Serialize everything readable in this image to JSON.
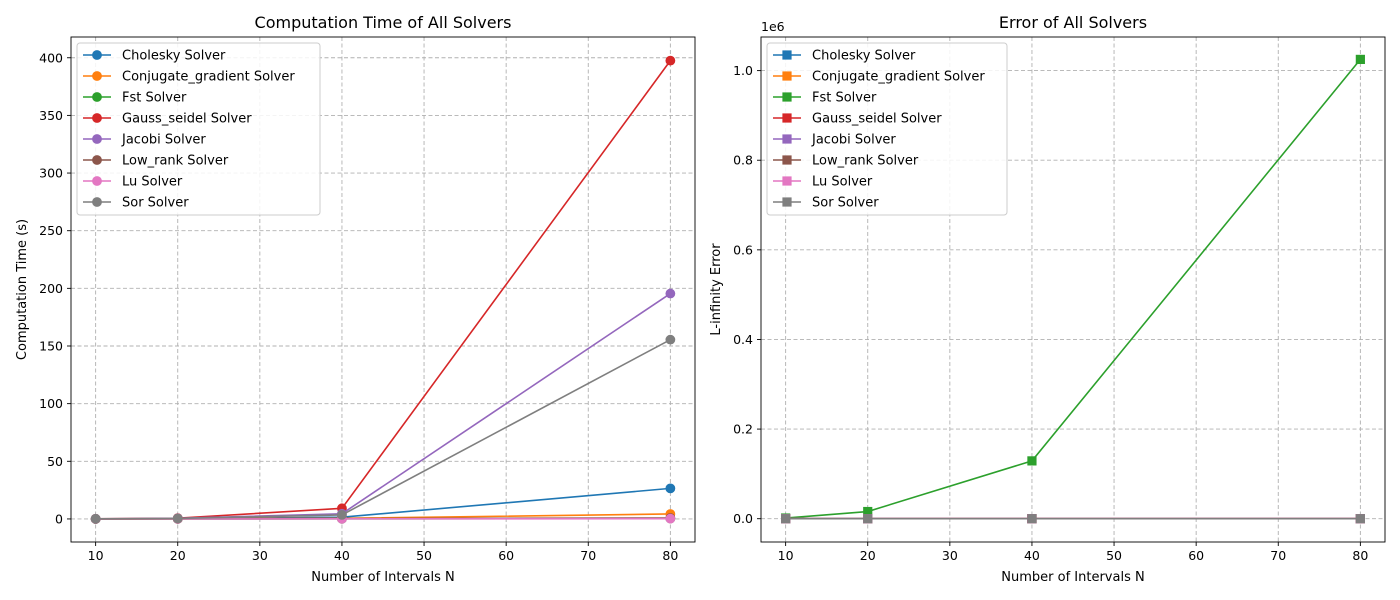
{
  "chart_data": [
    {
      "type": "line",
      "title": "Computation Time of All Solvers",
      "xlabel": "Number of Intervals N",
      "ylabel": "Computation Time (s)",
      "xlim": [
        7,
        83
      ],
      "ylim": [
        -20,
        418
      ],
      "xticks": [
        10,
        20,
        30,
        40,
        50,
        60,
        70,
        80
      ],
      "yticks": [
        0,
        50,
        100,
        150,
        200,
        250,
        300,
        350,
        400
      ],
      "offset_label": "",
      "grid": true,
      "legend_position": "top-left",
      "marker": "circle",
      "x": [
        10,
        20,
        40,
        80
      ],
      "series": [
        {
          "name": "Cholesky Solver",
          "color": "#1f77b4",
          "values": [
            0.0,
            0.2,
            1.5,
            26.5
          ]
        },
        {
          "name": "Conjugate_gradient Solver",
          "color": "#ff7f0e",
          "values": [
            0.0,
            0.1,
            0.5,
            4.3
          ]
        },
        {
          "name": "Fst Solver",
          "color": "#2ca02c",
          "values": [
            0.0,
            0.0,
            0.1,
            0.3
          ]
        },
        {
          "name": "Gauss_seidel Solver",
          "color": "#d62728",
          "values": [
            0.1,
            0.7,
            9.2,
            397.5
          ]
        },
        {
          "name": "Jacobi Solver",
          "color": "#9467bd",
          "values": [
            0.1,
            0.5,
            4.5,
            195.5
          ]
        },
        {
          "name": "Low_rank Solver",
          "color": "#8c564b",
          "values": [
            0.0,
            0.1,
            0.3,
            0.8
          ]
        },
        {
          "name": "Lu Solver",
          "color": "#e377c2",
          "values": [
            0.0,
            0.0,
            0.1,
            0.2
          ]
        },
        {
          "name": "Sor Solver",
          "color": "#7f7f7f",
          "values": [
            0.1,
            0.4,
            3.5,
            155.5
          ]
        }
      ]
    },
    {
      "type": "line",
      "title": "Error of All Solvers",
      "xlabel": "Number of Intervals N",
      "ylabel": "L-infinity Error",
      "xlim": [
        7,
        83
      ],
      "ylim": [
        -52000,
        1075000
      ],
      "xticks": [
        10,
        20,
        30,
        40,
        50,
        60,
        70,
        80
      ],
      "yticks": [
        0,
        200000,
        400000,
        600000,
        800000,
        1000000
      ],
      "ytick_labels": [
        "0.0",
        "0.2",
        "0.4",
        "0.6",
        "0.8",
        "1.0"
      ],
      "offset_label": "1e6",
      "grid": true,
      "legend_position": "top-left",
      "marker": "square",
      "x": [
        10,
        20,
        40,
        80
      ],
      "series": [
        {
          "name": "Cholesky Solver",
          "color": "#1f77b4",
          "values": [
            0.001,
            0.0003,
            8e-05,
            2e-05
          ]
        },
        {
          "name": "Conjugate_gradient Solver",
          "color": "#ff7f0e",
          "values": [
            0.001,
            0.0003,
            8e-05,
            2e-05
          ]
        },
        {
          "name": "Fst Solver",
          "color": "#2ca02c",
          "values": [
            1500,
            16000,
            129000,
            1025000
          ]
        },
        {
          "name": "Gauss_seidel Solver",
          "color": "#d62728",
          "values": [
            0.001,
            0.0003,
            8e-05,
            2e-05
          ]
        },
        {
          "name": "Jacobi Solver",
          "color": "#9467bd",
          "values": [
            0.001,
            0.0003,
            8e-05,
            2e-05
          ]
        },
        {
          "name": "Low_rank Solver",
          "color": "#8c564b",
          "values": [
            0.001,
            0.0003,
            8e-05,
            2e-05
          ]
        },
        {
          "name": "Lu Solver",
          "color": "#e377c2",
          "values": [
            0.001,
            0.0003,
            8e-05,
            2e-05
          ]
        },
        {
          "name": "Sor Solver",
          "color": "#7f7f7f",
          "values": [
            0.001,
            0.0003,
            8e-05,
            2e-05
          ]
        }
      ]
    }
  ]
}
